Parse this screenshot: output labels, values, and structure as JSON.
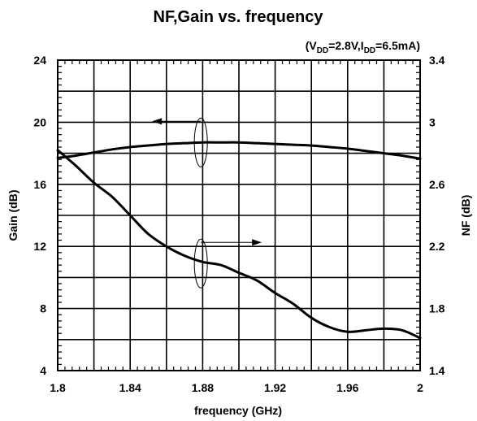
{
  "chart_data": {
    "type": "line",
    "title": "NF,Gain vs. frequency",
    "condition": {
      "open": "(V",
      "vdd_sub": "DD",
      "mid": "=2.8V,I",
      "idd_sub": "DD",
      "close": "=6.5mA)"
    },
    "xlabel": "frequency (GHz)",
    "ylabel_left": "Gain (dB)",
    "ylabel_right": "NF (dB)",
    "xlim": [
      1.8,
      2.0
    ],
    "ylim_left": [
      4,
      24
    ],
    "ylim_right": [
      1.4,
      3.4
    ],
    "xticks": [
      "1.8",
      "1.84",
      "1.88",
      "1.92",
      "1.96",
      "2"
    ],
    "yticks_left": [
      "4",
      "8",
      "12",
      "16",
      "20",
      "24"
    ],
    "yticks_right": [
      "1.4",
      "1.8",
      "2.2",
      "2.6",
      "3",
      "3.4"
    ],
    "grid": true,
    "series": [
      {
        "axis": "left",
        "x": [
          1.8,
          1.81,
          1.82,
          1.83,
          1.84,
          1.85,
          1.86,
          1.87,
          1.88,
          1.89,
          1.9,
          1.91,
          1.92,
          1.93,
          1.94,
          1.95,
          1.96,
          1.97,
          1.98,
          1.99,
          2.0
        ],
        "values": [
          17.7,
          17.85,
          18.05,
          18.25,
          18.4,
          18.5,
          18.6,
          18.65,
          18.7,
          18.7,
          18.7,
          18.65,
          18.6,
          18.55,
          18.5,
          18.4,
          18.3,
          18.15,
          18.0,
          17.85,
          17.65
        ]
      },
      {
        "axis": "right",
        "x": [
          1.8,
          1.81,
          1.82,
          1.83,
          1.84,
          1.85,
          1.86,
          1.87,
          1.88,
          1.89,
          1.9,
          1.91,
          1.92,
          1.93,
          1.94,
          1.95,
          1.96,
          1.97,
          1.98,
          1.99,
          2.0
        ],
        "values": [
          2.82,
          2.72,
          2.61,
          2.52,
          2.4,
          2.28,
          2.2,
          2.14,
          2.1,
          2.08,
          2.03,
          1.98,
          1.9,
          1.83,
          1.74,
          1.68,
          1.65,
          1.66,
          1.67,
          1.66,
          1.61
        ]
      }
    ],
    "annotations": [
      {
        "points_to": "left",
        "series_index": 0,
        "anchor": [
          1.879,
          18.7
        ]
      },
      {
        "points_to": "right",
        "series_index": 1,
        "anchor": [
          1.879,
          2.09
        ]
      }
    ]
  }
}
